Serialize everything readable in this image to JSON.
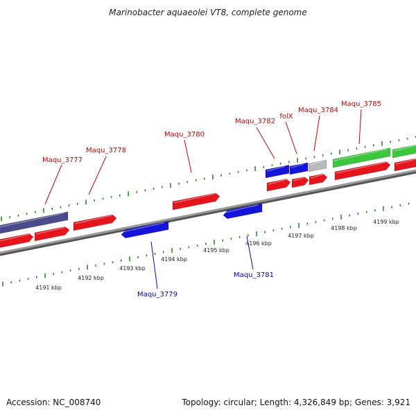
{
  "title": "Marinobacter aquaeolei VT8, complete genome",
  "footer": {
    "accession": "Accession: NC_008740",
    "summary": "Topology: circular; Length: 4,326,849 bp; Genes: 3,921"
  },
  "colors": {
    "backbone": "#8a8a8a",
    "forward_gene": "#e8141b",
    "reverse_gene": "#1414dd",
    "dark_feature": "#4a4a8c",
    "rna_feature": "#3cc83c",
    "pseudo_feature": "#b8b8b8",
    "tick": "#2a8a2a",
    "label_forward": "#cc0000",
    "label_reverse": "#0000cc"
  },
  "scale": {
    "unit": "kbp",
    "labels": [
      "4191 kbp",
      "4192 kbp",
      "4193 kbp",
      "4194 kbp",
      "4195 kbp",
      "4196 kbp",
      "4197 kbp",
      "4198 kbp",
      "4199 kbp"
    ]
  },
  "gene_labels": [
    {
      "name": "Maqu_3777",
      "strand": "forward"
    },
    {
      "name": "Maqu_3778",
      "strand": "forward"
    },
    {
      "name": "Maqu_3779",
      "strand": "reverse"
    },
    {
      "name": "Maqu_3780",
      "strand": "forward"
    },
    {
      "name": "Maqu_3781",
      "strand": "reverse"
    },
    {
      "name": "Maqu_3782",
      "strand": "forward"
    },
    {
      "name": "folX",
      "strand": "forward"
    },
    {
      "name": "Maqu_3784",
      "strand": "forward"
    },
    {
      "name": "Maqu_3785",
      "strand": "forward"
    }
  ]
}
